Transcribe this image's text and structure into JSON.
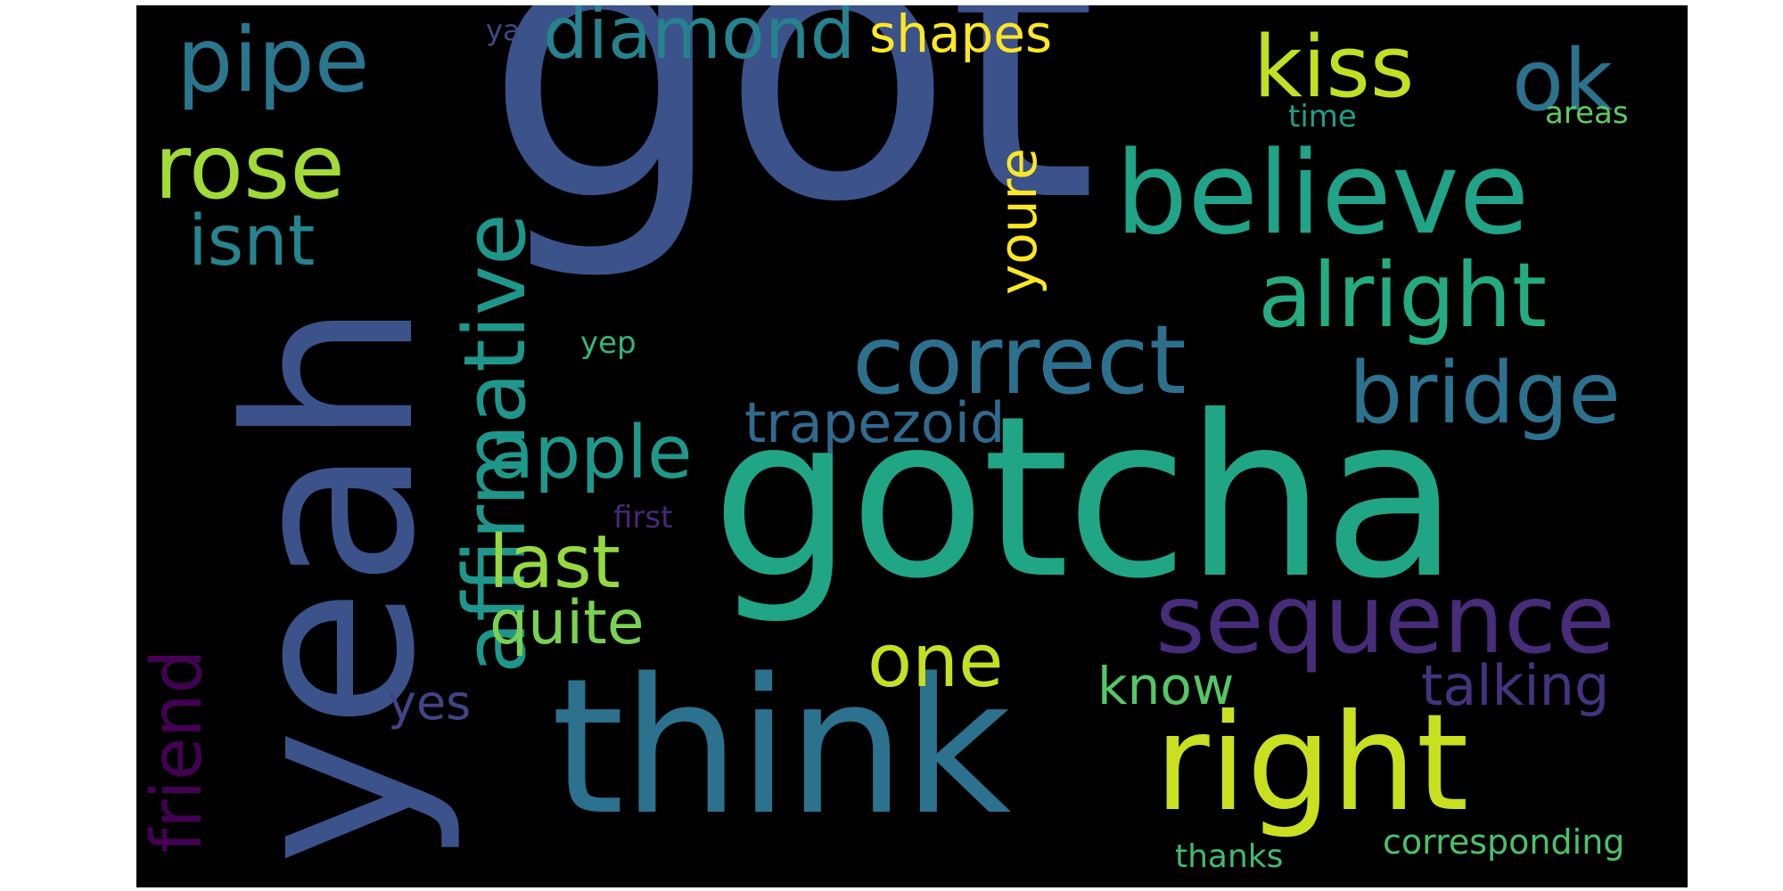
{
  "background": "#000000",
  "words": [
    {
      "text": "got",
      "color": "#3b528b"
    },
    {
      "text": "gotcha",
      "color": "#21a685"
    },
    {
      "text": "yeah",
      "color": "#3b528b"
    },
    {
      "text": "think",
      "color": "#2c728e"
    },
    {
      "text": "believe",
      "color": "#20a386"
    },
    {
      "text": "right",
      "color": "#c8e020"
    },
    {
      "text": "sequence",
      "color": "#472c7a"
    },
    {
      "text": "correct",
      "color": "#2d708e"
    },
    {
      "text": "alright",
      "color": "#25ab82"
    },
    {
      "text": "affirmative",
      "color": "#1f968b"
    },
    {
      "text": "bridge",
      "color": "#2c728e"
    },
    {
      "text": "kiss",
      "color": "#c2df23"
    },
    {
      "text": "pipe",
      "color": "#2a768e"
    },
    {
      "text": "rose",
      "color": "#a2da37"
    },
    {
      "text": "diamond",
      "color": "#26828e"
    },
    {
      "text": "ok",
      "color": "#2c718e"
    },
    {
      "text": "apple",
      "color": "#1f988b"
    },
    {
      "text": "friend",
      "color": "#440154"
    },
    {
      "text": "one",
      "color": "#c5e021"
    },
    {
      "text": "last",
      "color": "#95d840"
    },
    {
      "text": "isnt",
      "color": "#25848e"
    },
    {
      "text": "quite",
      "color": "#7ad151"
    },
    {
      "text": "trapezoid",
      "color": "#306a8e"
    },
    {
      "text": "talking",
      "color": "#46337e"
    },
    {
      "text": "know",
      "color": "#56c667"
    },
    {
      "text": "youre",
      "color": "#fde725"
    },
    {
      "text": "shapes",
      "color": "#fde725"
    },
    {
      "text": "yes",
      "color": "#414487"
    },
    {
      "text": "corresponding",
      "color": "#4ac16d"
    },
    {
      "text": "thanks",
      "color": "#3fbc73"
    },
    {
      "text": "time",
      "color": "#1f9e89"
    },
    {
      "text": "areas",
      "color": "#5ec962"
    },
    {
      "text": "yep",
      "color": "#35b779"
    },
    {
      "text": "first",
      "color": "#482878"
    },
    {
      "text": "ya",
      "color": "#3e4989"
    }
  ]
}
